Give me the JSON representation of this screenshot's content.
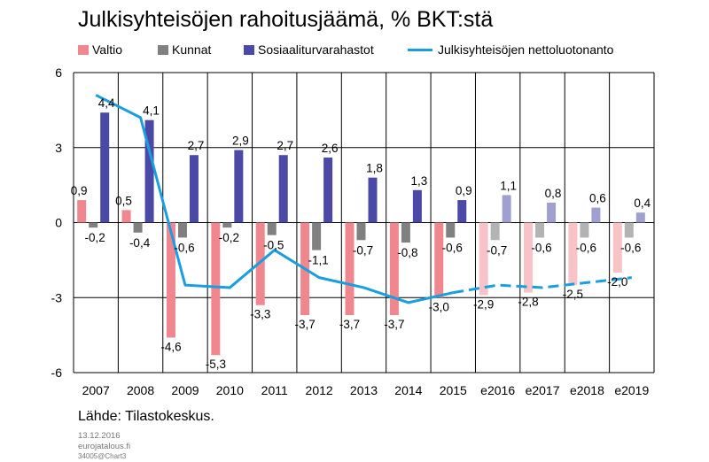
{
  "title": "Julkisyhteisöjen rahoitusjäämä, % BKT:stä",
  "legend": {
    "valtio": "Valtio",
    "kunnat": "Kunnat",
    "sosiaali": "Sosiaaliturvarahastot",
    "netto": "Julkisyhteisöjen nettoluotonanto"
  },
  "source": "Lähde: Tilastokeskus.",
  "footer": {
    "date": "13.12.2016",
    "site": "eurojatalous.fi",
    "code": "34005@Chart3"
  },
  "colors": {
    "valtio": "#f0878f",
    "valtio_forecast": "#f7c3c7",
    "kunnat": "#808080",
    "kunnat_forecast": "#b3b3b3",
    "sosiaali": "#4a4aa6",
    "sosiaali_forecast": "#a0a0d0",
    "netto": "#1a9ee0"
  },
  "chart_data": {
    "type": "bar",
    "title": "Julkisyhteisöjen rahoitusjäämä, % BKT:stä",
    "categories": [
      "2007",
      "2008",
      "2009",
      "2010",
      "2011",
      "2012",
      "2013",
      "2014",
      "2015",
      "e2016",
      "e2017",
      "e2018",
      "e2019"
    ],
    "forecast_from_index": 9,
    "ylim": [
      -6,
      6
    ],
    "yticks": [
      -6,
      -3,
      0,
      3,
      6
    ],
    "grid": true,
    "series": [
      {
        "name": "Valtio",
        "values": [
          0.9,
          0.5,
          -4.6,
          -5.3,
          -3.3,
          -3.7,
          -3.7,
          -3.7,
          -3.0,
          -2.9,
          -2.8,
          -2.5,
          -2.0
        ],
        "labels": [
          "0,9",
          "0,5",
          "-4,6",
          "-5,3",
          "-3,3",
          "-3,7",
          "-3,7",
          "-3,7",
          "-3,0",
          "-2,9",
          "-2,8",
          "-2,5",
          "-2,0"
        ]
      },
      {
        "name": "Kunnat",
        "values": [
          -0.2,
          -0.4,
          -0.6,
          -0.2,
          -0.5,
          -1.1,
          -0.7,
          -0.8,
          -0.6,
          -0.7,
          -0.6,
          -0.6,
          -0.6
        ],
        "labels": [
          "-0,2",
          "-0,4",
          "-0,6",
          "-0,2",
          "-0,5",
          "-1,1",
          "-0,7",
          "-0,8",
          "-0,6",
          "-0,7",
          "-0,6",
          "-0,6",
          "-0,6"
        ]
      },
      {
        "name": "Sosiaaliturvarahastot",
        "values": [
          4.4,
          4.1,
          2.7,
          2.9,
          2.7,
          2.6,
          1.8,
          1.3,
          0.9,
          1.1,
          0.8,
          0.6,
          0.4
        ],
        "labels": [
          "4,4",
          "4,1",
          "2,7",
          "2,9",
          "2,7",
          "2,6",
          "1,8",
          "1,3",
          "0,9",
          "1,1",
          "0,8",
          "0,6",
          "0,4"
        ]
      },
      {
        "name": "Julkisyhteisöjen nettoluotonanto",
        "type": "line",
        "values": [
          5.1,
          4.2,
          -2.5,
          -2.6,
          -1.1,
          -2.2,
          -2.6,
          -3.2,
          -2.8,
          -2.5,
          -2.6,
          -2.4,
          -2.2
        ]
      }
    ]
  }
}
